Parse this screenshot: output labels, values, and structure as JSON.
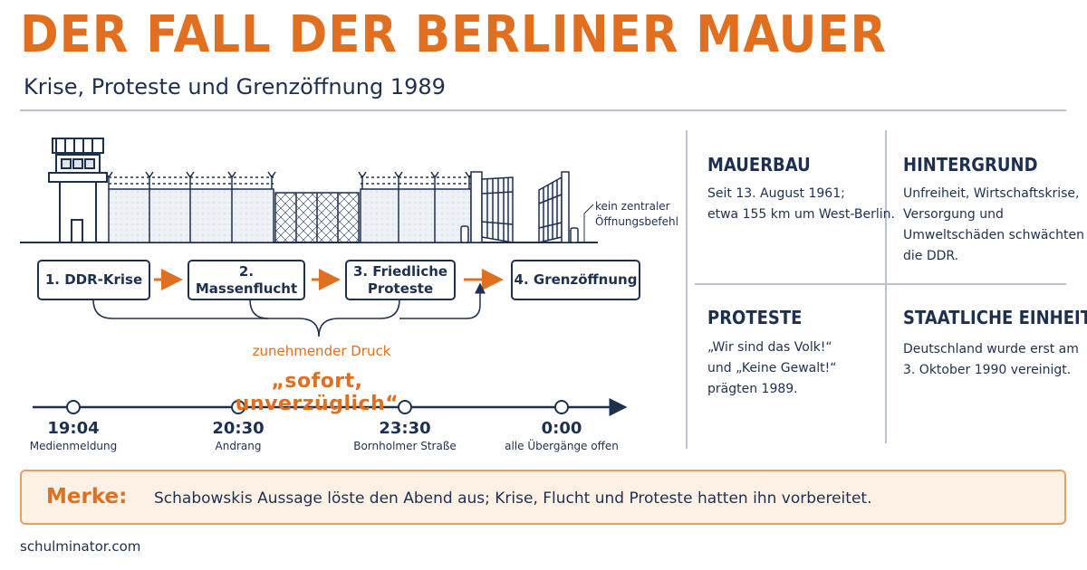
{
  "header": {
    "title": "DER FALL DER BERLINER MAUER",
    "subtitle": "Krise, Proteste und Grenzöffnung 1989"
  },
  "illustration": {
    "note": "kein zentraler\nÖffnungsbefehl"
  },
  "steps": [
    {
      "label": "1. DDR-Krise"
    },
    {
      "label": "2. Massenflucht"
    },
    {
      "label": "3. Friedliche\nProteste"
    },
    {
      "label": "4. Grenzöffnung"
    }
  ],
  "pressure_label": "zunehmender Druck",
  "quote": "„sofort, unverzüglich“",
  "timeline": [
    {
      "time": "19:04",
      "label": "Medienmeldung"
    },
    {
      "time": "20:30",
      "label": "Andrang"
    },
    {
      "time": "23:30",
      "label": "Bornholmer Straße"
    },
    {
      "time": "0:00",
      "label": "alle Übergänge offen"
    }
  ],
  "info": {
    "mauerbau": {
      "heading": "MAUERBAU",
      "text": "Seit 13. August 1961;\netwa 155 km um West-Berlin."
    },
    "hintergrund": {
      "heading": "HINTERGRUND",
      "text": "Unfreiheit, Wirtschaftskrise,\nVersorgung und\nUmweltschäden schwächten\ndie DDR."
    },
    "proteste": {
      "heading": "PROTESTE",
      "text": "„Wir sind das Volk!“\nund „Keine Gewalt!“\nprägten 1989."
    },
    "einheit": {
      "heading": "STAATLICHE EINHEIT",
      "text": "Deutschland wurde erst am\n3. Oktober 1990 vereinigt."
    }
  },
  "merke": {
    "label": "Merke:",
    "text": "Schabowskis Aussage löste den Abend aus; Krise, Flucht und Proteste hatten ihn vorbereitet."
  },
  "footer": "schulminator.com",
  "colors": {
    "accent": "#e07020",
    "navy": "#1e3050",
    "merke_bg": "#fdf1e6",
    "divider": "#b8c2d0"
  }
}
